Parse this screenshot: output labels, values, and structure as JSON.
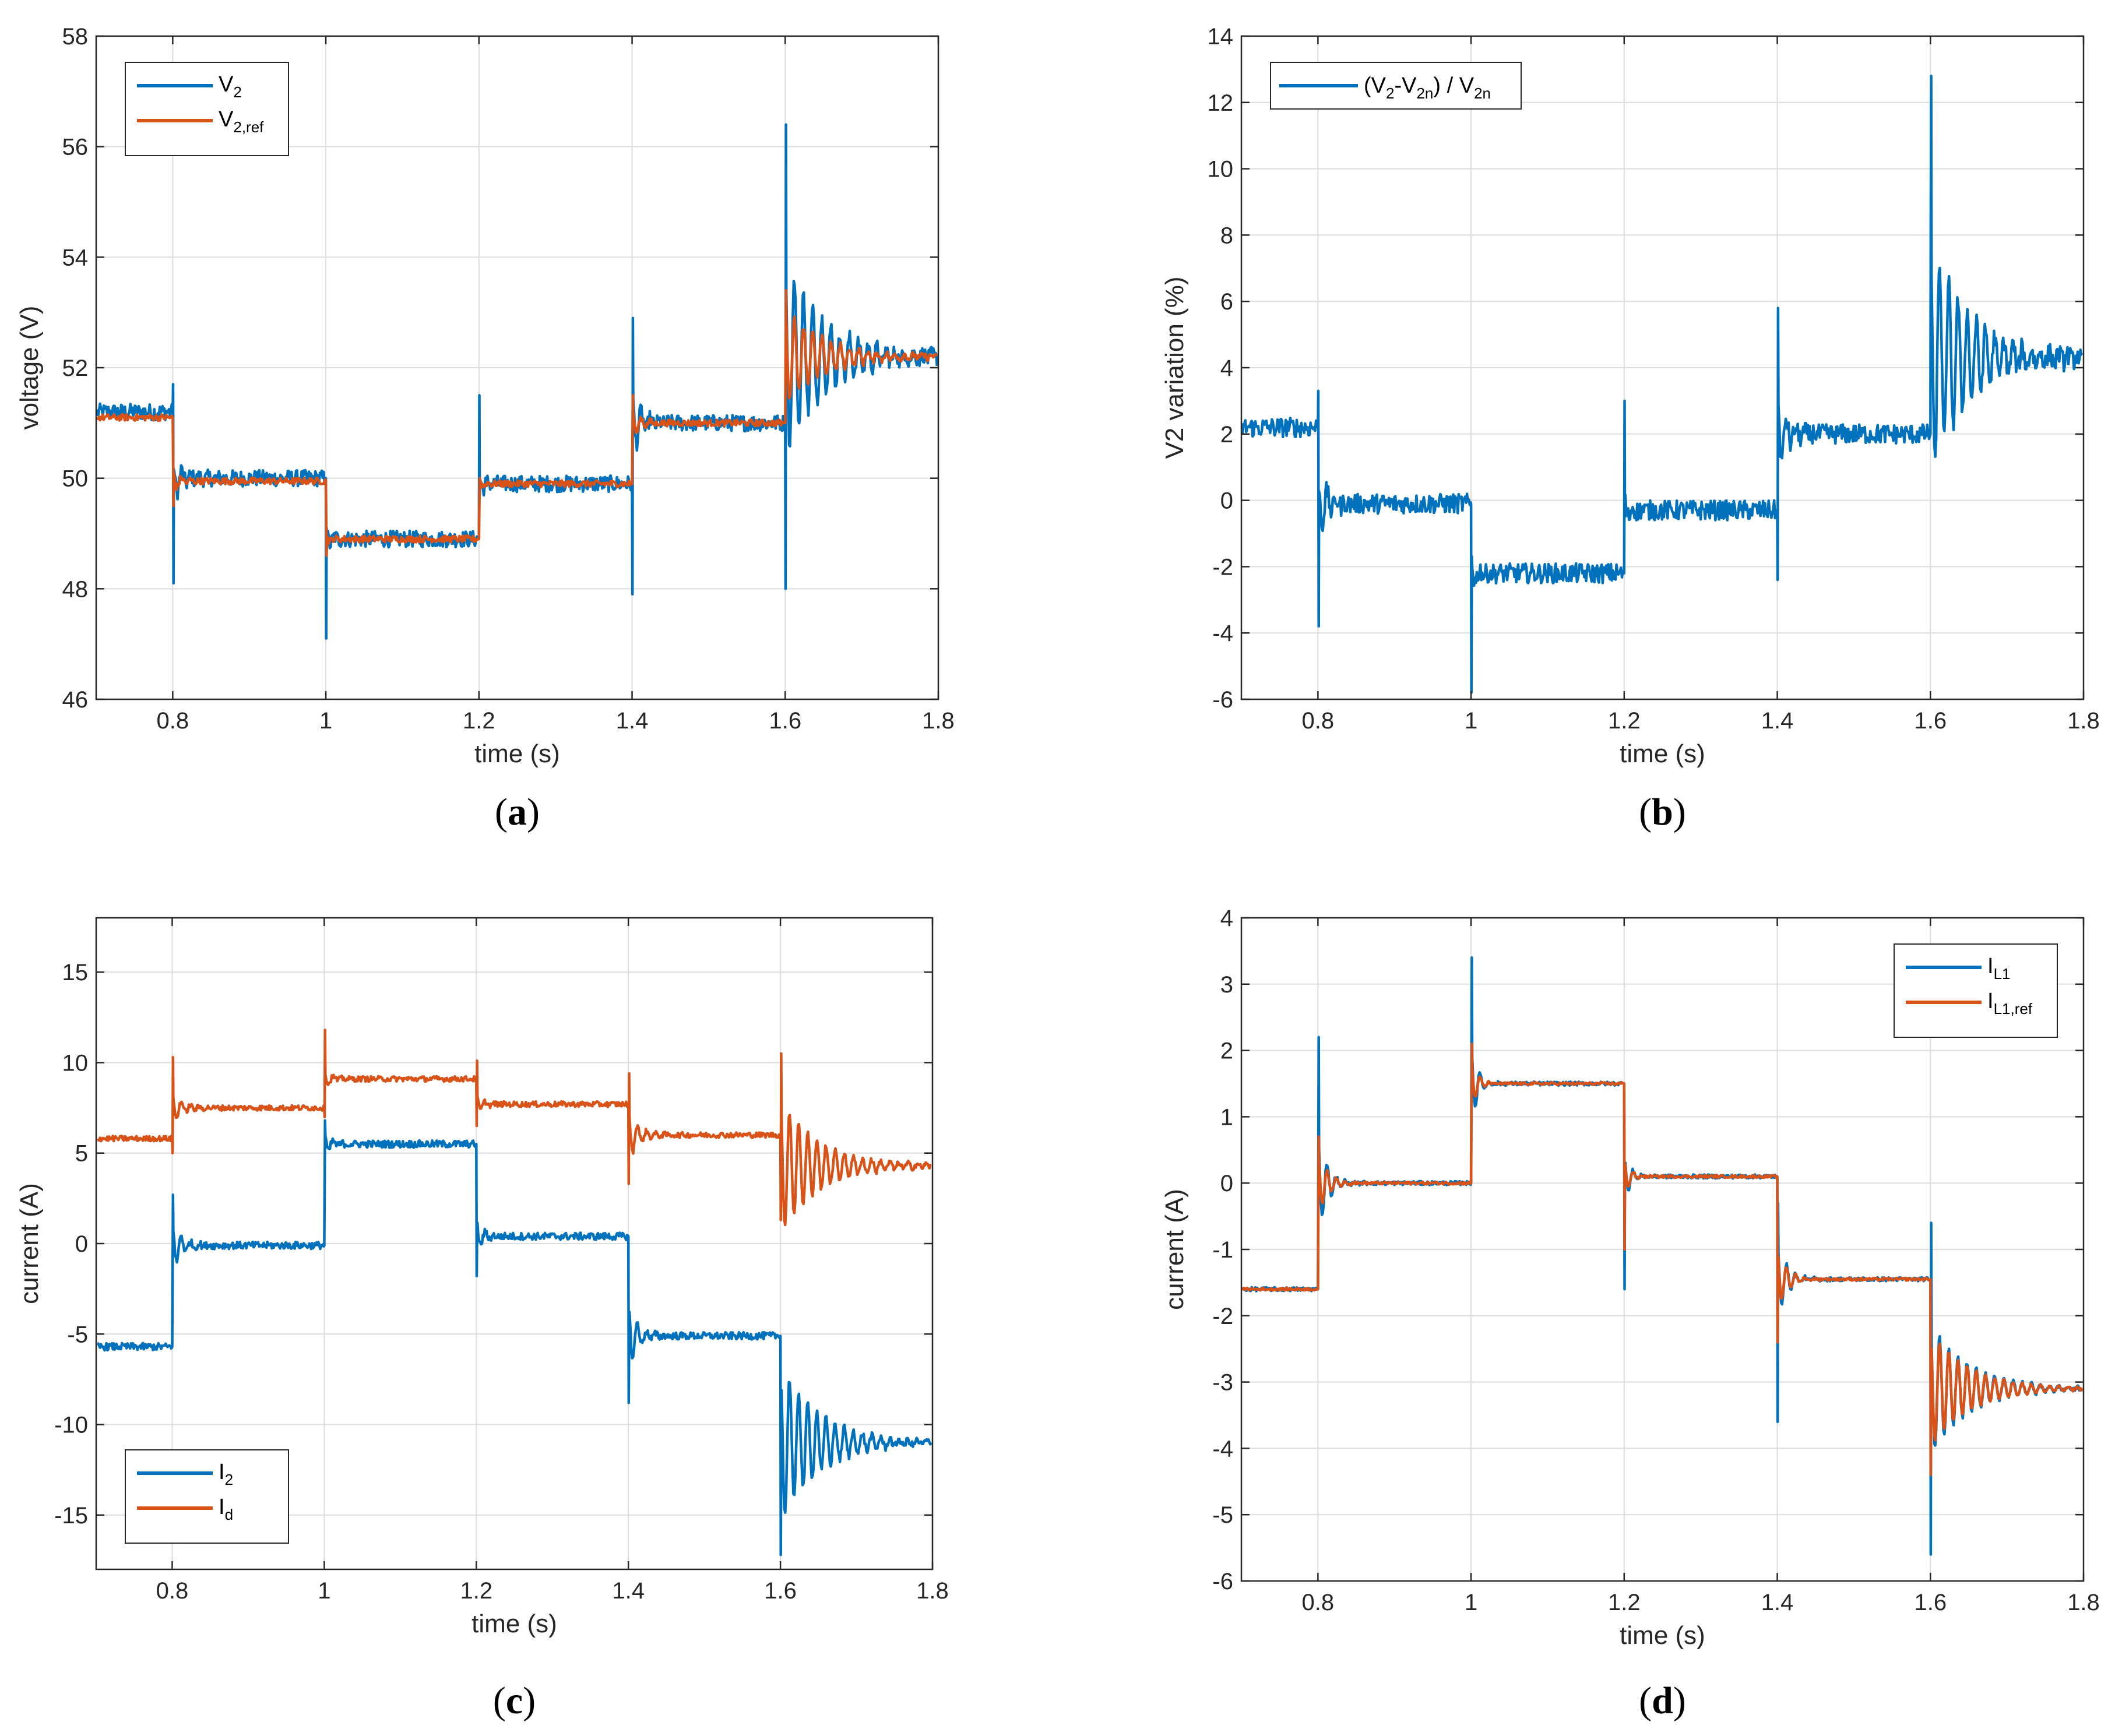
{
  "colors": {
    "blue": "#0072BD",
    "orange": "#D95319"
  },
  "chart_data": [
    {
      "id": "a",
      "type": "line",
      "panel_label": "(a)",
      "panel_letter": "a",
      "xlabel": "time (s)",
      "ylabel": "voltage (V)",
      "xlim": [
        0.7,
        1.8
      ],
      "ylim": [
        46,
        58
      ],
      "xticks": [
        0.8,
        1,
        1.2,
        1.4,
        1.6,
        1.8
      ],
      "xtick_labels": [
        "0.8",
        "1",
        "1.2",
        "1.4",
        "1.6",
        "1.8"
      ],
      "yticks": [
        46,
        48,
        50,
        52,
        54,
        56,
        58
      ],
      "ytick_labels": [
        "46",
        "48",
        "50",
        "52",
        "54",
        "56",
        "58"
      ],
      "legend_position": "top-left",
      "series": [
        {
          "name": "V_2",
          "legend_main": "V",
          "legend_sub": "2",
          "color": "#0072BD",
          "noise": 0.15,
          "levels": [
            51.2,
            50.0,
            48.9,
            49.9,
            51.0,
            52.2
          ],
          "edges": [
            0.8,
            1.0,
            1.2,
            1.4,
            1.6
          ],
          "spikes": [
            [
              51.7,
              48.1
            ],
            [
              47.1,
              49.1
            ],
            [
              51.5,
              49.7
            ],
            [
              47.9,
              52.9
            ],
            [
              48.0,
              56.4
            ]
          ],
          "ringing": [
            [
              0.4,
              0.012
            ],
            [
              0.2,
              0.008
            ],
            [
              0.15,
              0.008
            ],
            [
              0.6,
              0.012
            ],
            [
              1.8,
              0.05
            ]
          ]
        },
        {
          "name": "V_2,ref",
          "legend_main": "V",
          "legend_sub": "2,ref",
          "color": "#D95319",
          "noise": 0.06,
          "levels": [
            51.1,
            49.95,
            48.9,
            49.9,
            51.0,
            52.2
          ],
          "edges": [
            0.8,
            1.0,
            1.2,
            1.4,
            1.6
          ],
          "spikes": [
            [
              null,
              49.5
            ],
            [
              null,
              48.6
            ],
            [
              null,
              50.0
            ],
            [
              null,
              51.5
            ],
            [
              null,
              53.4
            ]
          ],
          "ringing": [
            [
              0.2,
              0.01
            ],
            [
              0.1,
              0.006
            ],
            [
              0.1,
              0.006
            ],
            [
              0.3,
              0.01
            ],
            [
              0.9,
              0.05
            ]
          ]
        }
      ]
    },
    {
      "id": "b",
      "type": "line",
      "panel_label": "(b)",
      "panel_letter": "b",
      "xlabel": "time (s)",
      "ylabel": "V2 variation (%)",
      "xlim": [
        0.7,
        1.8
      ],
      "ylim": [
        -6,
        14
      ],
      "xticks": [
        0.8,
        1,
        1.2,
        1.4,
        1.6,
        1.8
      ],
      "xtick_labels": [
        "0.8",
        "1",
        "1.2",
        "1.4",
        "1.6",
        "1.8"
      ],
      "yticks": [
        -6,
        -4,
        -2,
        0,
        2,
        4,
        6,
        8,
        10,
        12,
        14
      ],
      "ytick_labels": [
        "-6",
        "-4",
        "-2",
        "0",
        "2",
        "4",
        "6",
        "8",
        "10",
        "12",
        "14"
      ],
      "legend_position": "top-left",
      "legend_text": "(V2-V2n) / V2n",
      "series": [
        {
          "name": "(V2-V2n) / V2n",
          "color": "#0072BD",
          "noise": 0.3,
          "levels": [
            2.2,
            -0.1,
            -2.2,
            -0.3,
            2.0,
            4.3
          ],
          "edges": [
            0.8,
            1.0,
            1.2,
            1.4,
            1.6
          ],
          "spikes": [
            [
              3.3,
              -3.8
            ],
            [
              -5.8,
              -1.7
            ],
            [
              3.0,
              -0.5
            ],
            [
              -2.4,
              5.8
            ],
            [
              8.3,
              12.8
            ]
          ],
          "ringing": [
            [
              1.0,
              0.012
            ],
            [
              0.5,
              0.008
            ],
            [
              0.4,
              0.008
            ],
            [
              1.3,
              0.012
            ],
            [
              3.6,
              0.05
            ]
          ]
        }
      ]
    },
    {
      "id": "c",
      "type": "line",
      "panel_label": "(c)",
      "panel_letter": "c",
      "xlabel": "time (s)",
      "ylabel": "current (A)",
      "xlim": [
        0.7,
        1.8
      ],
      "ylim": [
        -18,
        18
      ],
      "xticks": [
        0.8,
        1,
        1.2,
        1.4,
        1.6,
        1.8
      ],
      "xtick_labels": [
        "0.8",
        "1",
        "1.2",
        "1.4",
        "1.6",
        "1.8"
      ],
      "yticks": [
        -15,
        -10,
        -5,
        0,
        5,
        10,
        15
      ],
      "ytick_labels": [
        "-15",
        "-10",
        "-5",
        "0",
        "5",
        "10",
        "15"
      ],
      "legend_position": "bottom-left",
      "series": [
        {
          "name": "I_2",
          "legend_main": "I",
          "legend_sub": "2",
          "color": "#0072BD",
          "noise": 0.2,
          "levels": [
            -5.7,
            -0.1,
            5.5,
            0.4,
            -5.1,
            -11.0
          ],
          "edges": [
            0.8,
            1.0,
            1.2,
            1.4,
            1.6
          ],
          "spikes": [
            [
              null,
              2.7
            ],
            [
              null,
              6.8
            ],
            [
              -1.8,
              null
            ],
            [
              -8.8,
              null
            ],
            [
              -17.2,
              null
            ]
          ],
          "ringing": [
            [
              1.5,
              0.012
            ],
            [
              0.8,
              0.008
            ],
            [
              1.0,
              0.008
            ],
            [
              2.0,
              0.012
            ],
            [
              4.5,
              0.05
            ]
          ]
        },
        {
          "name": "I_d",
          "legend_main": "I",
          "legend_sub": "d",
          "color": "#D95319",
          "noise": 0.15,
          "levels": [
            5.8,
            7.5,
            9.1,
            7.7,
            6.0,
            4.3
          ],
          "edges": [
            0.8,
            1.0,
            1.2,
            1.4,
            1.6
          ],
          "spikes": [
            [
              5.0,
              10.3
            ],
            [
              7.0,
              11.8
            ],
            [
              6.5,
              10.1
            ],
            [
              3.3,
              9.4
            ],
            [
              1.3,
              10.5
            ]
          ],
          "ringing": [
            [
              1.0,
              0.012
            ],
            [
              0.6,
              0.008
            ],
            [
              0.6,
              0.008
            ],
            [
              1.5,
              0.012
            ],
            [
              3.8,
              0.05
            ]
          ]
        }
      ]
    },
    {
      "id": "d",
      "type": "line",
      "panel_label": "(d)",
      "panel_letter": "d",
      "xlabel": "time (s)",
      "ylabel": "current (A)",
      "xlim": [
        0.7,
        1.8
      ],
      "ylim": [
        -6,
        4
      ],
      "xticks": [
        0.8,
        1,
        1.2,
        1.4,
        1.6,
        1.8
      ],
      "xtick_labels": [
        "0.8",
        "1",
        "1.2",
        "1.4",
        "1.6",
        "1.8"
      ],
      "yticks": [
        -6,
        -5,
        -4,
        -3,
        -2,
        -1,
        0,
        1,
        2,
        3,
        4
      ],
      "ytick_labels": [
        "-6",
        "-5",
        "-4",
        "-3",
        "-2",
        "-1",
        "0",
        "1",
        "2",
        "3",
        "4"
      ],
      "legend_position": "top-right",
      "series": [
        {
          "name": "I_L1",
          "legend_main": "I",
          "legend_sub": "L1",
          "color": "#0072BD",
          "noise": 0.03,
          "levels": [
            -1.6,
            0.0,
            1.5,
            0.1,
            -1.45,
            -3.1
          ],
          "edges": [
            0.8,
            1.0,
            1.2,
            1.4,
            1.6
          ],
          "spikes": [
            [
              null,
              2.2
            ],
            [
              null,
              3.4
            ],
            [
              -1.6,
              null
            ],
            [
              -3.6,
              -0.3
            ],
            [
              -5.6,
              -0.6
            ]
          ],
          "ringing": [
            [
              0.8,
              0.012
            ],
            [
              0.7,
              0.008
            ],
            [
              0.4,
              0.008
            ],
            [
              0.6,
              0.012
            ],
            [
              1.0,
              0.05
            ]
          ]
        },
        {
          "name": "I_L1,ref",
          "legend_main": "I",
          "legend_sub": "L1,ref",
          "color": "#D95319",
          "noise": 0.02,
          "levels": [
            -1.6,
            0.0,
            1.5,
            0.1,
            -1.45,
            -3.1
          ],
          "edges": [
            0.8,
            1.0,
            1.2,
            1.4,
            1.6
          ],
          "spikes": [
            [
              null,
              0.7
            ],
            [
              null,
              2.1
            ],
            [
              -1.0,
              null
            ],
            [
              -2.4,
              null
            ],
            [
              -4.4,
              null
            ]
          ],
          "ringing": [
            [
              0.5,
              0.012
            ],
            [
              0.4,
              0.008
            ],
            [
              0.3,
              0.008
            ],
            [
              0.5,
              0.012
            ],
            [
              0.9,
              0.05
            ]
          ]
        }
      ]
    }
  ]
}
